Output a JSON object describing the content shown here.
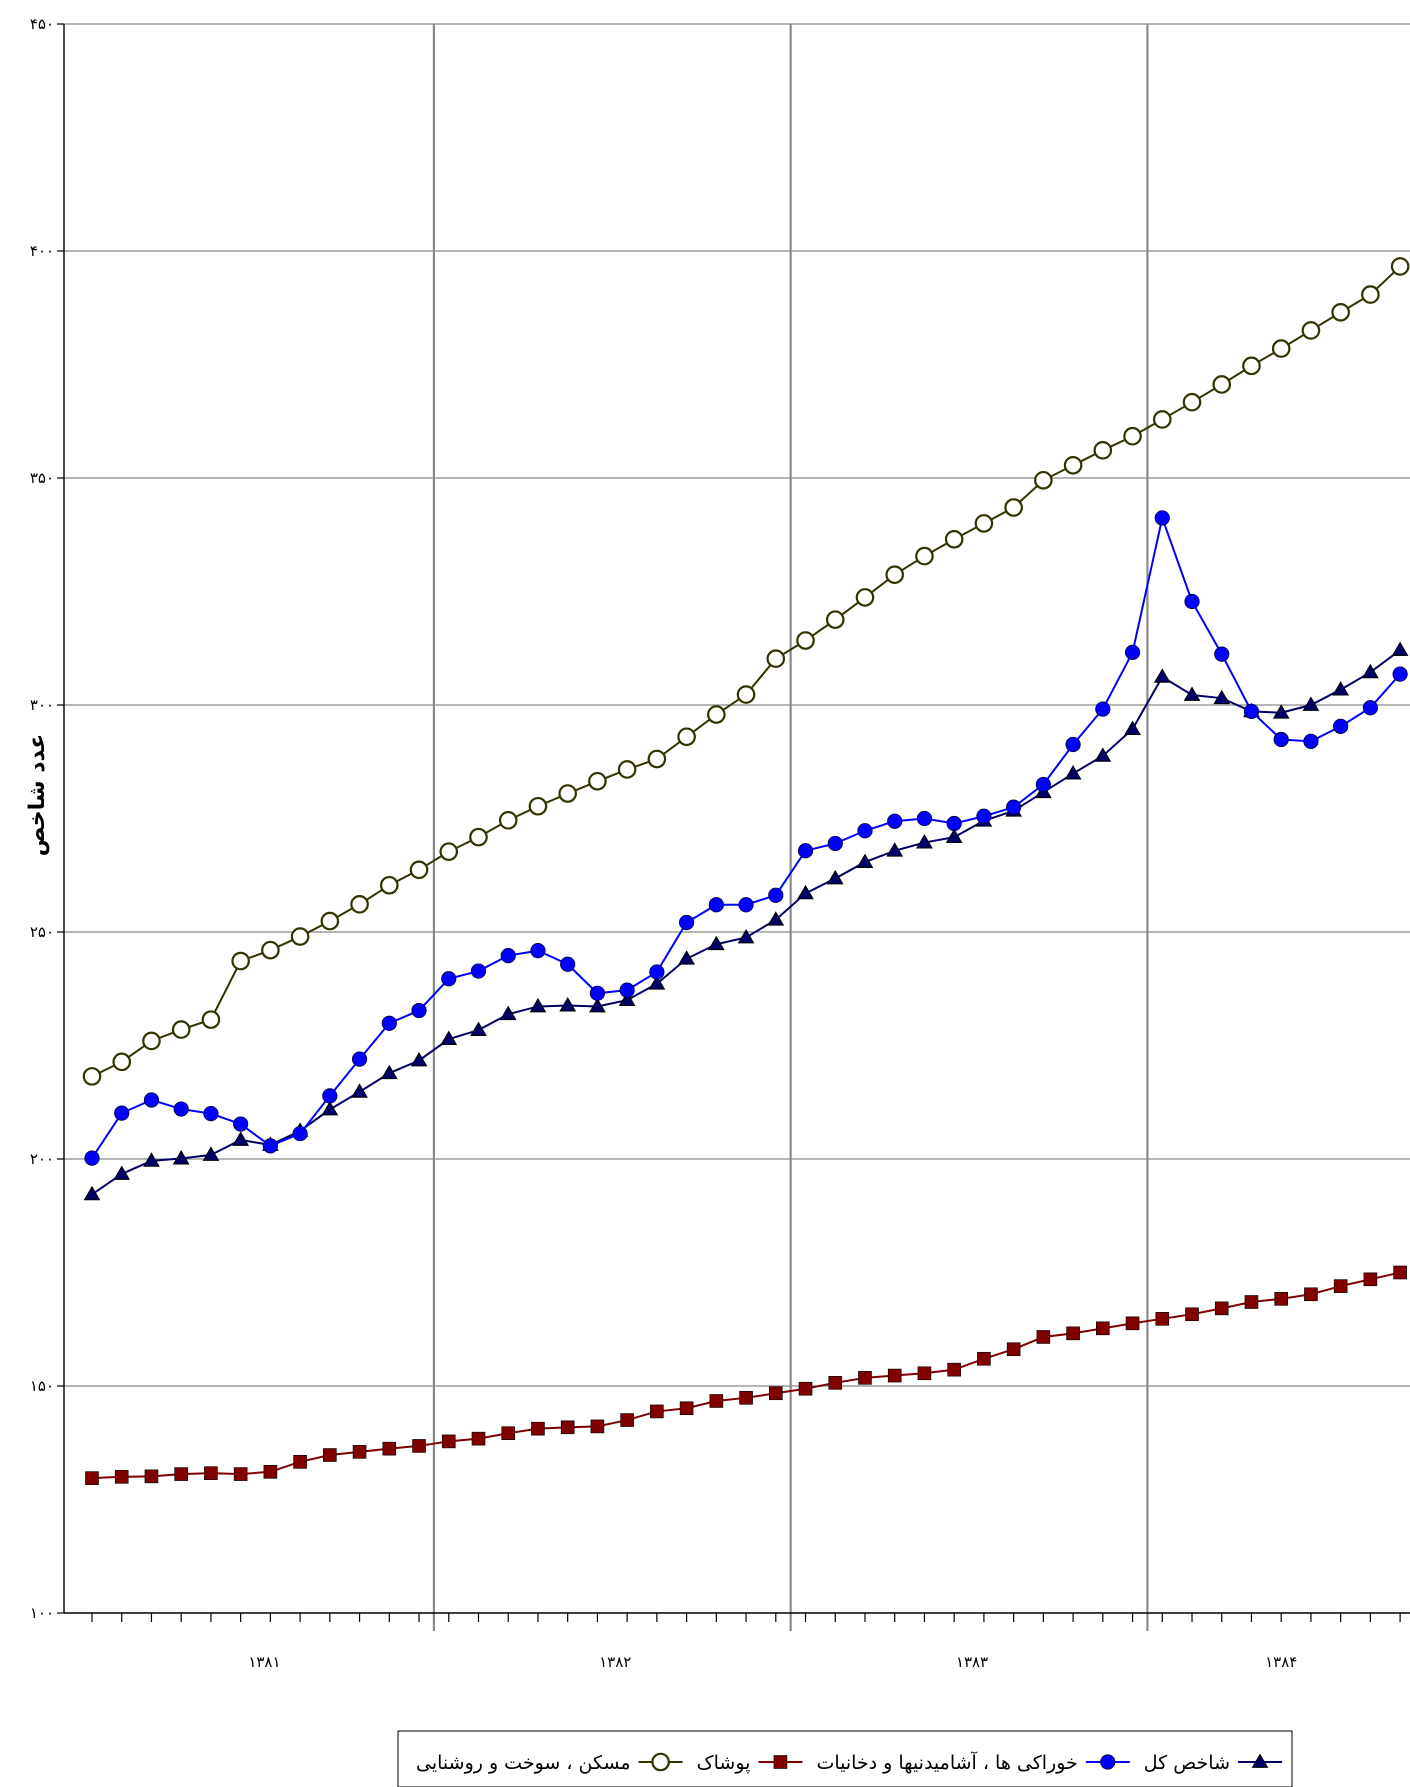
{
  "chart_data": {
    "type": "line",
    "title": "",
    "xlabel": "",
    "ylabel": "عدد شاخص",
    "ylim": [
      100,
      450
    ],
    "yticks": [
      100,
      150,
      200,
      250,
      300,
      350,
      400,
      450
    ],
    "ytick_labels": [
      "۱۰۰",
      "۱۵۰",
      "۲۰۰",
      "۲۵۰",
      "۳۰۰",
      "۳۵۰",
      "۴۰۰",
      "۴۵۰"
    ],
    "x_group_labels": [
      "۱۳۸۱",
      "۱۳۸۲",
      "۱۳۸۳",
      "۱۳۸۴"
    ],
    "grid": true,
    "legend_position": "bottom",
    "series": [
      {
        "name": "شاخص کل",
        "color": "#000066",
        "line_color": "#000066",
        "marker": "triangle",
        "values": [
          192.2,
          196.7,
          199.6,
          200.1,
          200.9,
          204.2,
          203.1,
          206.2,
          210.9,
          214.8,
          218.9,
          221.7,
          226.4,
          228.4,
          231.9,
          233.6,
          233.8,
          233.6,
          235.0,
          238.6,
          244.1,
          247.3,
          248.8,
          252.7,
          258.5,
          261.8,
          265.4,
          267.9,
          269.7,
          270.9,
          274.5,
          276.7,
          280.8,
          284.9,
          288.8,
          294.7,
          306.2,
          302.2,
          301.5,
          298.6,
          298.3,
          300.0,
          303.4,
          307.2,
          312.1
        ]
      },
      {
        "name": "خوراکی ها ، آشامیدنیها و دخانیات",
        "color": "#0000ff",
        "line_color": "#0000ff",
        "marker": "circle",
        "values": [
          200.2,
          210.1,
          213.0,
          211.0,
          210.0,
          207.7,
          202.9,
          205.6,
          213.9,
          222.0,
          229.9,
          232.7,
          239.7,
          241.4,
          244.8,
          245.9,
          242.9,
          236.5,
          237.2,
          241.2,
          252.1,
          256.0,
          256.0,
          258.1,
          267.9,
          269.5,
          272.3,
          274.4,
          275.0,
          273.9,
          275.5,
          277.5,
          282.5,
          291.3,
          299.1,
          311.6,
          341.2,
          322.8,
          311.2,
          298.6,
          292.4,
          292.0,
          295.3,
          299.4,
          306.8
        ]
      },
      {
        "name": "پوشاک",
        "color": "#800000",
        "line_color": "#800000",
        "marker": "square",
        "values": [
          129.7,
          130.0,
          130.1,
          130.6,
          130.8,
          130.6,
          131.1,
          133.3,
          134.8,
          135.5,
          136.2,
          136.8,
          137.8,
          138.4,
          139.6,
          140.6,
          140.9,
          141.1,
          142.5,
          144.4,
          145.1,
          146.7,
          147.4,
          148.4,
          149.4,
          150.7,
          151.8,
          152.3,
          152.8,
          153.6,
          156.0,
          158.1,
          160.8,
          161.6,
          162.7,
          163.8,
          164.8,
          165.8,
          167.1,
          168.5,
          169.2,
          170.2,
          172.0,
          173.5,
          175.0
        ]
      },
      {
        "name": "مسکن ، سوخت و روشنایی",
        "color": "#333300",
        "line_color": "#333300",
        "marker": "circle-open",
        "values": [
          218.2,
          221.4,
          226.0,
          228.5,
          230.7,
          243.6,
          246.0,
          249.0,
          252.4,
          256.1,
          260.3,
          263.7,
          267.7,
          270.9,
          274.6,
          277.7,
          280.5,
          283.2,
          285.8,
          288.1,
          293.0,
          297.9,
          302.3,
          310.2,
          314.2,
          318.8,
          323.7,
          328.7,
          332.8,
          336.5,
          340.0,
          343.5,
          349.5,
          352.8,
          356.1,
          359.2,
          362.9,
          366.7,
          370.6,
          374.7,
          378.5,
          382.5,
          386.5,
          390.4,
          396.6
        ]
      }
    ]
  }
}
